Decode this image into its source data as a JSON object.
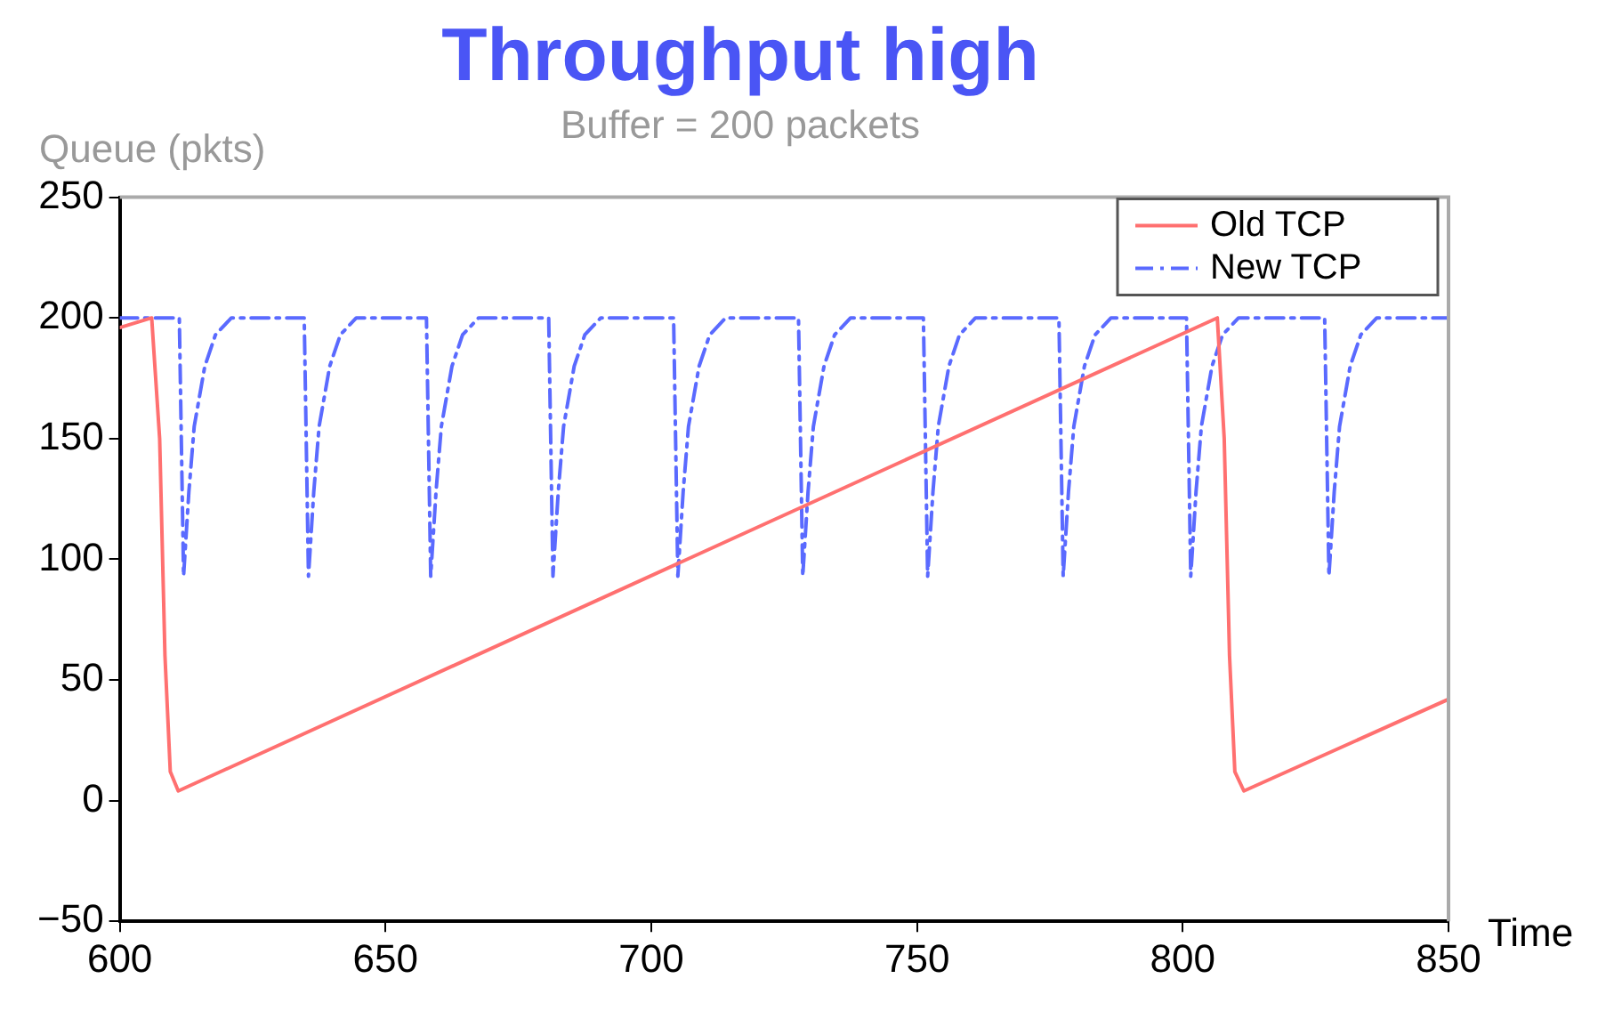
{
  "chart_data": {
    "type": "line",
    "title": "Throughput high",
    "subtitle": "Buffer = 200 packets",
    "ylabel": "Queue (pkts)",
    "xlabel": "Time",
    "xlim": [
      600,
      850
    ],
    "xticks": [
      600,
      650,
      700,
      750,
      800,
      850
    ],
    "ylim": [
      -50,
      250
    ],
    "yticks": [
      -50,
      0,
      50,
      100,
      150,
      200,
      250
    ],
    "grid": false,
    "legend": "top right",
    "series": [
      {
        "name": "Old TCP",
        "color": "#ff7070",
        "line_style": "solid",
        "marker": "none",
        "x": [
          600,
          606,
          607.5,
          608.5,
          609.5,
          611,
          806.5,
          807.8,
          808.8,
          809.8,
          811.5,
          850
        ],
        "values": [
          196,
          200,
          150,
          60,
          12,
          4,
          200,
          150,
          60,
          12,
          4,
          42
        ]
      },
      {
        "name": "New TCP",
        "color": "#5a6aff",
        "line_style": "dashed",
        "marker": "none",
        "x": [
          600,
          611.2,
          612,
          613,
          614,
          616,
          618,
          621,
          634.7,
          635.5,
          636.5,
          637.5,
          639.5,
          641.5,
          644.5,
          657.7,
          658.5,
          659.5,
          660.5,
          662.5,
          664.5,
          667.5,
          680.7,
          681.5,
          682.5,
          683.5,
          685.5,
          687.5,
          690.5,
          704.2,
          705,
          706,
          707,
          709,
          711,
          714,
          727.7,
          728.5,
          729.5,
          730.5,
          732.5,
          734.5,
          737.5,
          751.2,
          752,
          753,
          754,
          756,
          758,
          761,
          776.7,
          777.5,
          778.5,
          779.5,
          781.5,
          783.5,
          786.5,
          800.7,
          801.5,
          802.5,
          803.5,
          805.5,
          807.5,
          810.5,
          826.7,
          827.5,
          828.5,
          829.5,
          831.5,
          833.5,
          836.5,
          850
        ],
        "values": [
          200,
          200,
          93,
          128,
          155,
          180,
          193,
          200,
          200,
          93,
          128,
          155,
          180,
          193,
          200,
          200,
          93,
          128,
          155,
          180,
          193,
          200,
          200,
          93,
          128,
          155,
          180,
          193,
          200,
          200,
          93,
          128,
          155,
          180,
          193,
          200,
          200,
          93,
          128,
          155,
          180,
          193,
          200,
          200,
          93,
          128,
          155,
          180,
          193,
          200,
          200,
          93,
          128,
          155,
          180,
          193,
          200,
          200,
          93,
          128,
          155,
          180,
          193,
          200,
          200,
          93,
          128,
          155,
          180,
          193,
          200,
          200
        ]
      }
    ]
  }
}
